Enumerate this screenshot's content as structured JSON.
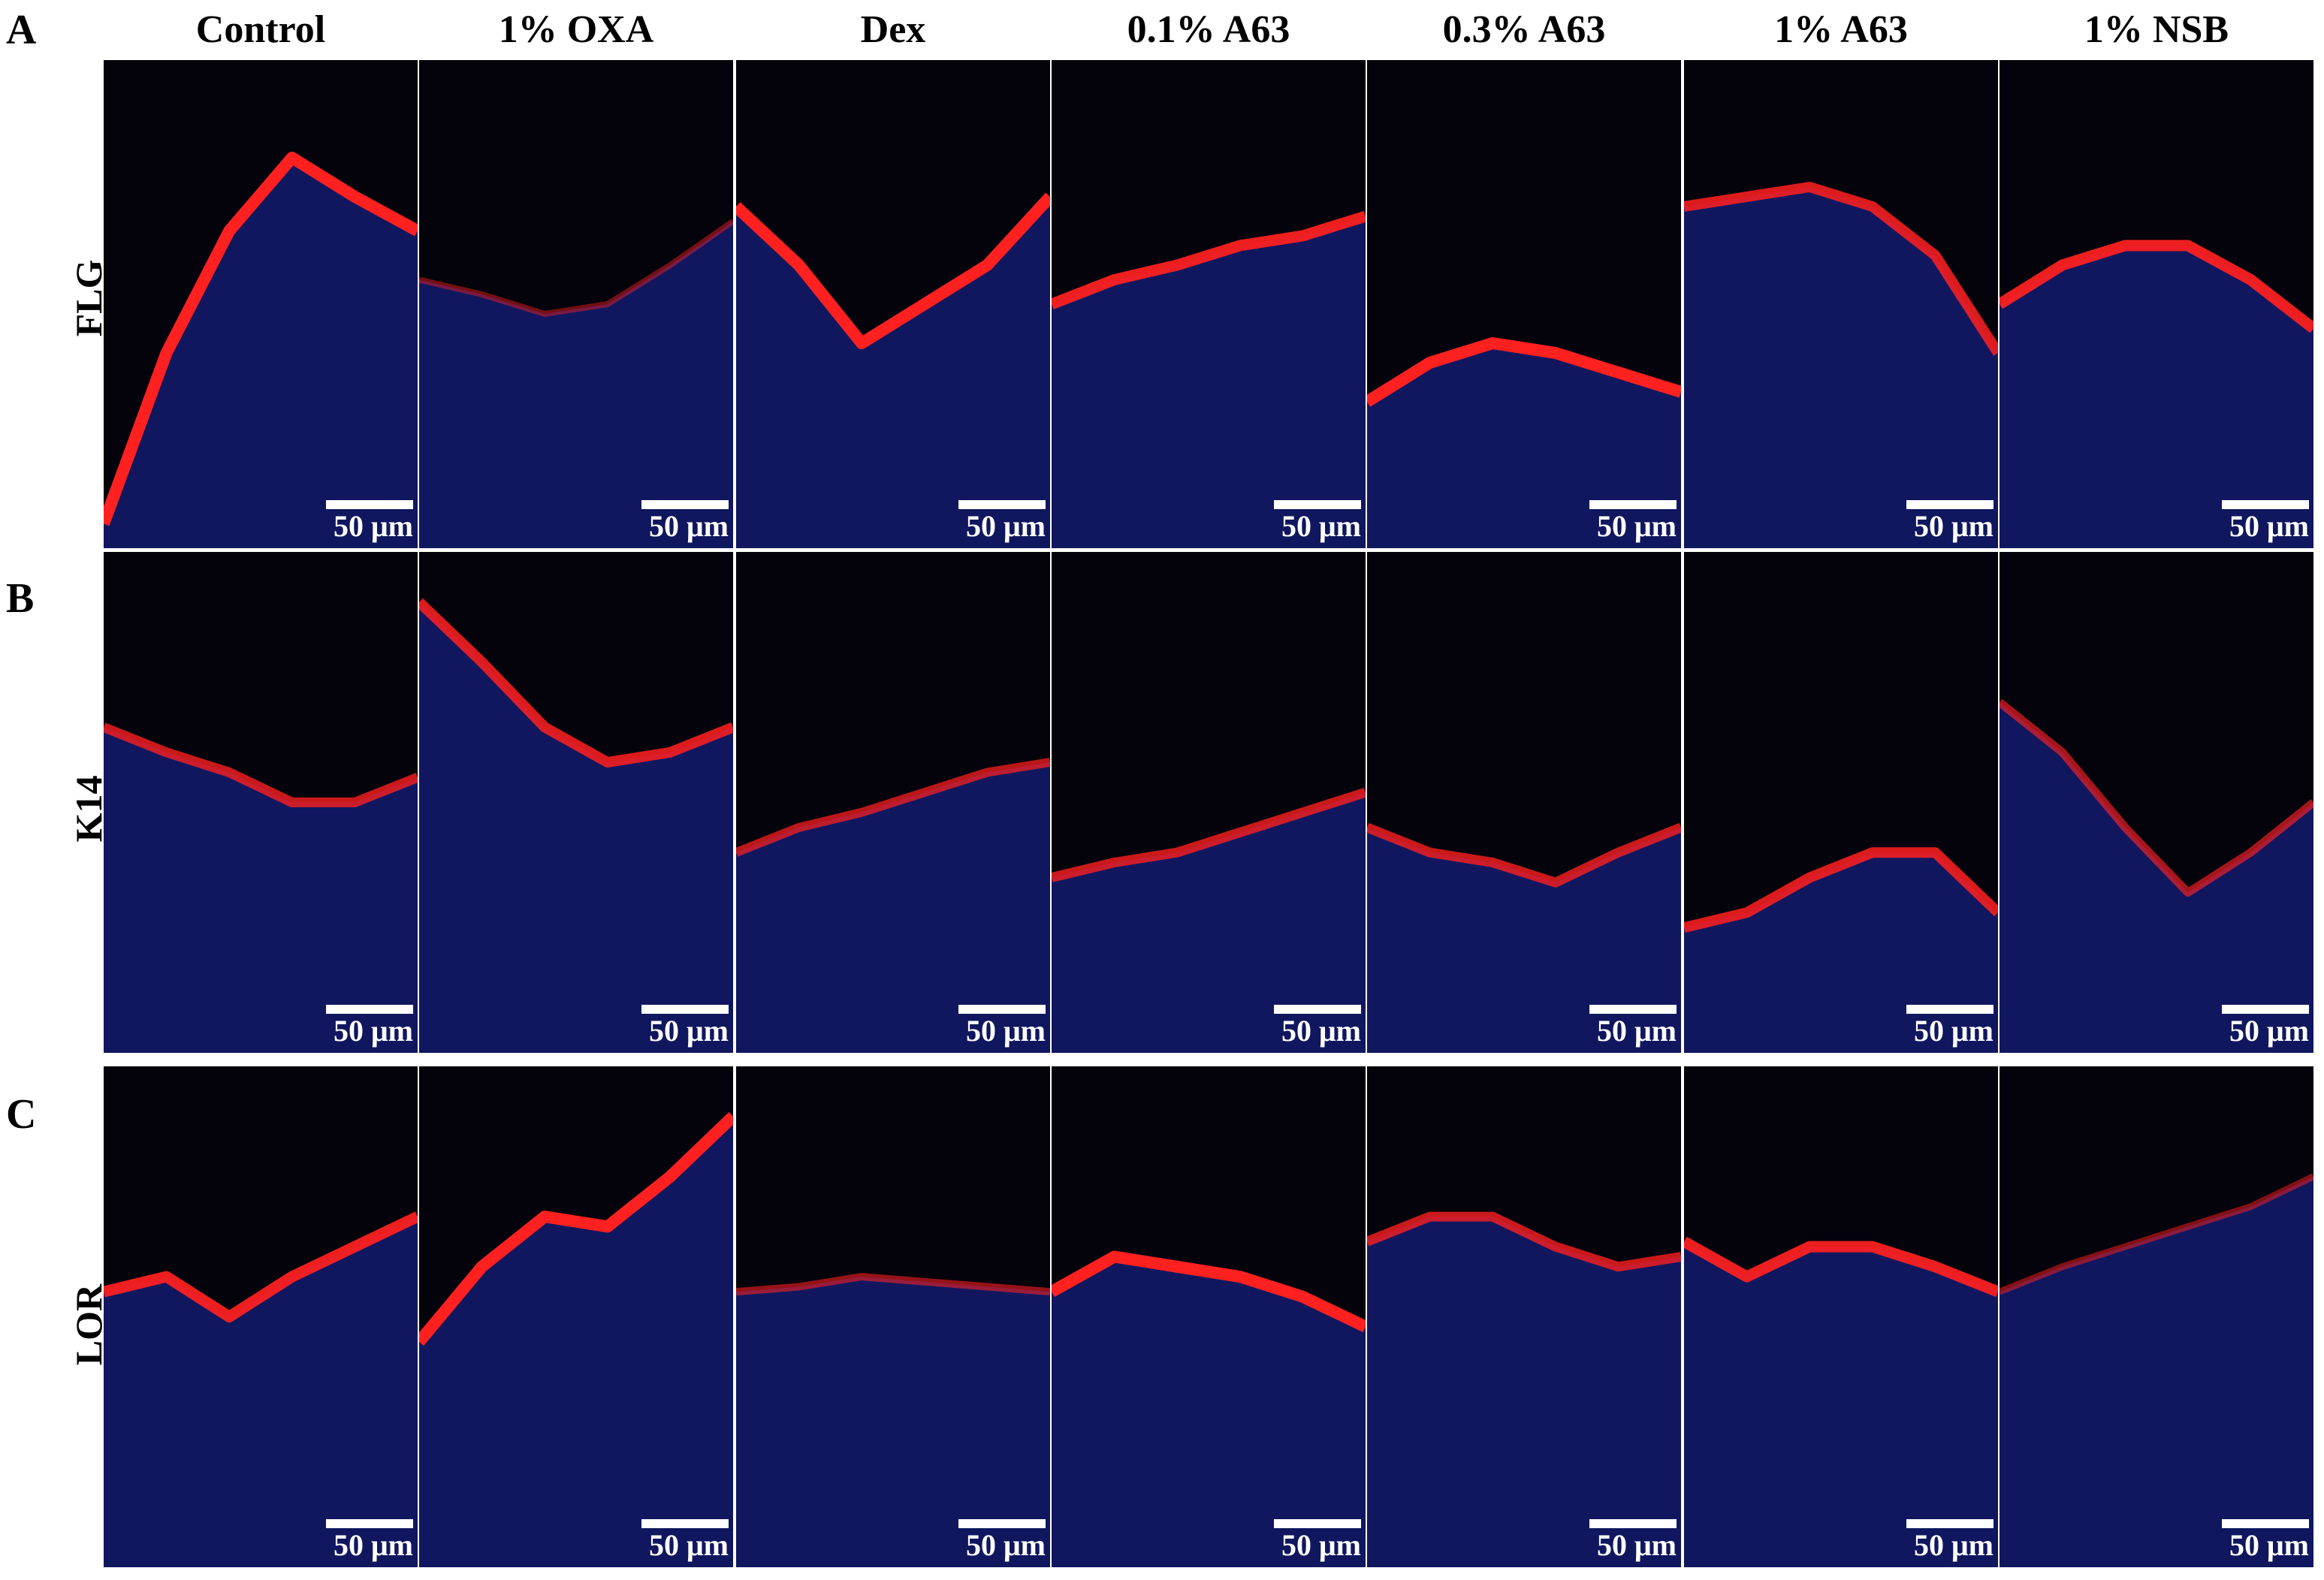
{
  "columns": [
    "Control",
    "1% OXA",
    "Dex",
    "0.1% A63",
    "0.3% A63",
    "1% A63",
    "1% NSB"
  ],
  "rows": [
    {
      "letter": "A",
      "marker": "FLG"
    },
    {
      "letter": "B",
      "marker": "K14"
    },
    {
      "letter": "C",
      "marker": "LOR"
    }
  ],
  "scale_bar_label": "50 μm",
  "colors": {
    "background": "#04020a",
    "nuclei_stain": "#2030c8",
    "marker_stain": "#ff2020"
  }
}
